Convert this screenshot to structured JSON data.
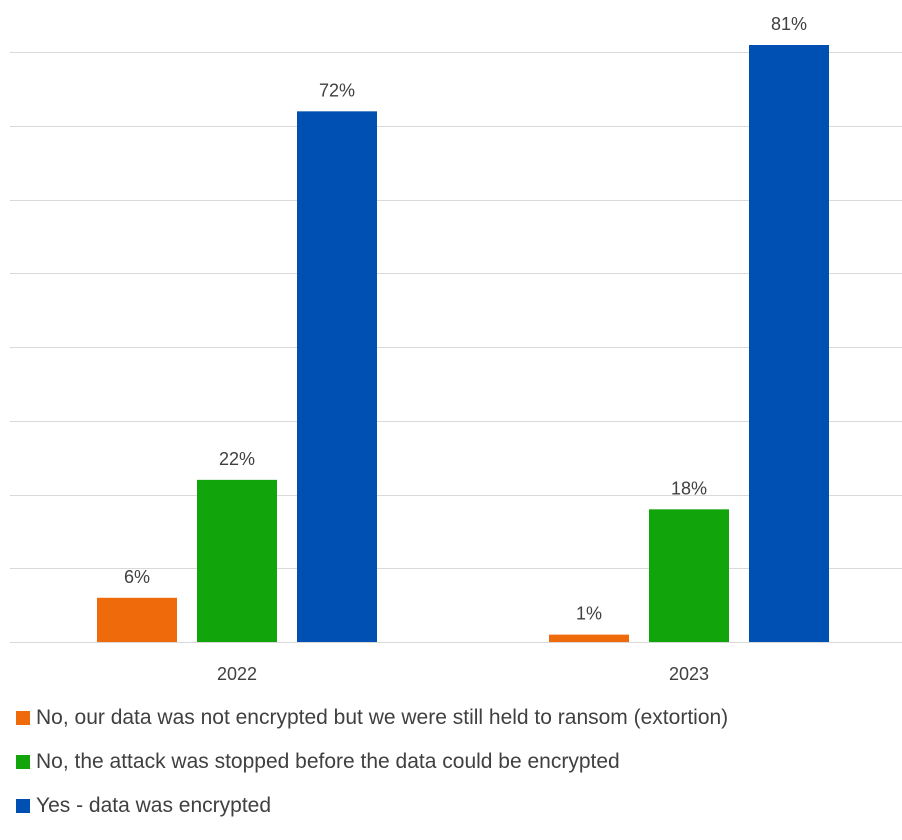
{
  "chart_data": {
    "type": "bar",
    "categories": [
      "2022",
      "2023"
    ],
    "series": [
      {
        "name": "No, our data was not encrypted but we were still held to ransom (extortion)",
        "color": "#EE6A0A",
        "values": [
          6,
          1
        ],
        "labels": [
          "6%",
          "1%"
        ]
      },
      {
        "name": "No, the attack was stopped before the data could be encrypted",
        "color": "#11A40B",
        "values": [
          22,
          18
        ],
        "labels": [
          "22%",
          "18%"
        ]
      },
      {
        "name": "Yes - data was encrypted",
        "color": "#0050B3",
        "values": [
          72,
          81
        ],
        "labels": [
          "72%",
          "81%"
        ]
      }
    ],
    "ylim": [
      0,
      81
    ],
    "grid": true,
    "legend_position": "bottom-left"
  }
}
